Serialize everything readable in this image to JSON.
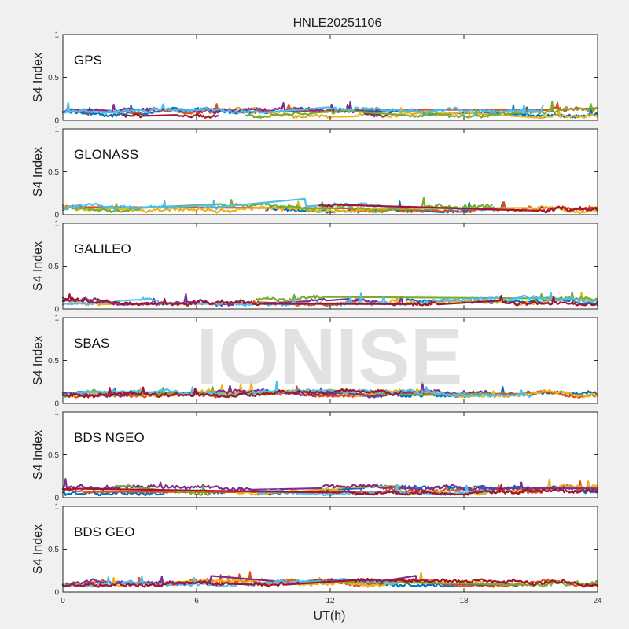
{
  "figure": {
    "title": "HNLE20251106",
    "xlabel": "UT(h)",
    "watermark": "IONISE"
  },
  "chart_data": [
    {
      "type": "line",
      "panel_label": "GPS",
      "ylabel": "S4 Index",
      "xlim": [
        0,
        24
      ],
      "ylim": [
        0,
        1
      ],
      "xticks": [
        0,
        6,
        12,
        18,
        24
      ],
      "yticks": [
        0,
        0.5,
        1
      ],
      "show_xticklabels": false,
      "baseline": 0.08,
      "spread": 0.07,
      "series": [
        {
          "values": []
        }
      ]
    },
    {
      "type": "line",
      "panel_label": "GLONASS",
      "ylabel": "S4 Index",
      "xlim": [
        0,
        24
      ],
      "ylim": [
        0,
        1
      ],
      "xticks": [
        0,
        6,
        12,
        18,
        24
      ],
      "yticks": [
        0,
        0.5,
        1
      ],
      "show_xticklabels": false,
      "baseline": 0.07,
      "spread": 0.06,
      "series": [
        {
          "values": []
        }
      ]
    },
    {
      "type": "line",
      "panel_label": "GALILEO",
      "ylabel": "S4 Index",
      "xlim": [
        0,
        24
      ],
      "ylim": [
        0,
        1
      ],
      "xticks": [
        0,
        6,
        12,
        18,
        24
      ],
      "yticks": [
        0,
        0.5,
        1
      ],
      "show_xticklabels": false,
      "baseline": 0.09,
      "spread": 0.07,
      "series": [
        {
          "values": []
        }
      ]
    },
    {
      "type": "line",
      "panel_label": "SBAS",
      "ylabel": "S4 Index",
      "xlim": [
        0,
        24
      ],
      "ylim": [
        0,
        1
      ],
      "xticks": [
        0,
        6,
        12,
        18,
        24
      ],
      "yticks": [
        0,
        0.5,
        1
      ],
      "show_xticklabels": false,
      "baseline": 0.11,
      "spread": 0.05,
      "series": [
        {
          "values": []
        }
      ]
    },
    {
      "type": "line",
      "panel_label": "BDS NGEO",
      "ylabel": "S4 Index",
      "xlim": [
        0,
        24
      ],
      "ylim": [
        0,
        1
      ],
      "xticks": [
        0,
        6,
        12,
        18,
        24
      ],
      "yticks": [
        0,
        0.5,
        1
      ],
      "show_xticklabels": false,
      "baseline": 0.08,
      "spread": 0.07,
      "series": [
        {
          "values": []
        }
      ]
    },
    {
      "type": "line",
      "panel_label": "BDS GEO",
      "ylabel": "S4 Index",
      "xlim": [
        0,
        24
      ],
      "ylim": [
        0,
        1
      ],
      "xticks": [
        0,
        6,
        12,
        18,
        24
      ],
      "yticks": [
        0,
        0.5,
        1
      ],
      "show_xticklabels": true,
      "baseline": 0.1,
      "spread": 0.05,
      "series": [
        {
          "values": []
        }
      ]
    }
  ],
  "colors": [
    "#0072bd",
    "#d95319",
    "#edb120",
    "#7e2f8e",
    "#77ac30",
    "#4dbeee",
    "#a2142f"
  ]
}
